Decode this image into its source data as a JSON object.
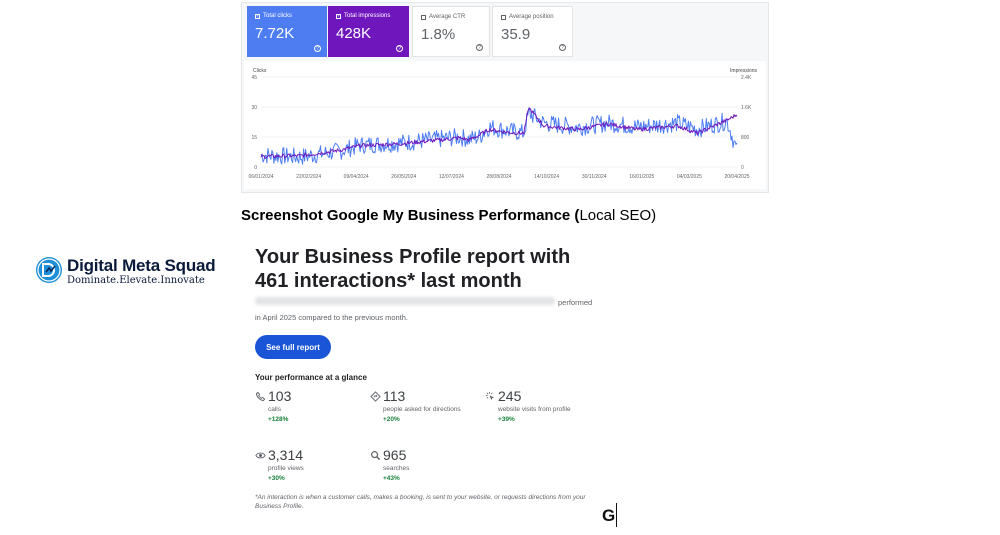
{
  "search_console": {
    "metrics": [
      {
        "label": "Total clicks",
        "value": "7.72K",
        "selected": true
      },
      {
        "label": "Total impressions",
        "value": "428K",
        "selected": true
      },
      {
        "label": "Average CTR",
        "value": "1.8%",
        "selected": false
      },
      {
        "label": "Average position",
        "value": "35.9",
        "selected": false
      }
    ],
    "colors": {
      "clicks": "#4e7df1",
      "impressions": "#6f17bd"
    }
  },
  "chart_data": {
    "type": "line",
    "xlabel": "",
    "y_left_label": "Clicks",
    "y_right_label": "Impressions",
    "y_left_ticks": [
      "0",
      "15",
      "30",
      "45"
    ],
    "y_right_ticks": [
      "0",
      "800",
      "1.6K",
      "2.4K"
    ],
    "y_left_range": [
      0,
      45
    ],
    "y_right_range": [
      0,
      2400
    ],
    "x_ticks": [
      "06/01/2024",
      "22/02/2024",
      "09/04/2024",
      "26/05/2024",
      "12/07/2024",
      "28/08/2024",
      "14/10/2024",
      "30/11/2024",
      "16/01/2025",
      "04/03/2025",
      "20/04/2025"
    ],
    "grid": true,
    "series": [
      {
        "name": "Clicks",
        "axis": "left",
        "color": "#4e7df1",
        "anchors": [
          [
            0,
            6
          ],
          [
            40,
            5
          ],
          [
            80,
            8
          ],
          [
            100,
            11
          ],
          [
            140,
            12
          ],
          [
            180,
            14
          ],
          [
            200,
            15
          ],
          [
            210,
            14
          ],
          [
            220,
            15
          ],
          [
            230,
            20
          ],
          [
            250,
            18
          ],
          [
            265,
            17
          ],
          [
            270,
            27
          ],
          [
            285,
            22
          ],
          [
            300,
            21
          ],
          [
            320,
            20
          ],
          [
            350,
            22
          ],
          [
            380,
            20
          ],
          [
            420,
            22
          ],
          [
            440,
            19
          ],
          [
            470,
            23
          ],
          [
            480,
            8
          ]
        ],
        "amplitude": 4.5
      },
      {
        "name": "Impressions",
        "axis": "right",
        "color": "#6f17bd",
        "anchors": [
          [
            0,
            280
          ],
          [
            40,
            300
          ],
          [
            80,
            450
          ],
          [
            100,
            570
          ],
          [
            140,
            620
          ],
          [
            180,
            720
          ],
          [
            200,
            780
          ],
          [
            210,
            720
          ],
          [
            220,
            850
          ],
          [
            230,
            1000
          ],
          [
            250,
            920
          ],
          [
            265,
            900
          ],
          [
            270,
            1580
          ],
          [
            285,
            1100
          ],
          [
            300,
            1050
          ],
          [
            320,
            1000
          ],
          [
            350,
            1150
          ],
          [
            380,
            1000
          ],
          [
            420,
            1100
          ],
          [
            440,
            900
          ],
          [
            470,
            1250
          ],
          [
            480,
            1400
          ]
        ],
        "amplitude": 90
      }
    ]
  },
  "caption": {
    "bold": "Screenshot Google My Business Performance (",
    "normal": "Local SEO)"
  },
  "logo": {
    "name": "Digital Meta Squad",
    "tagline": "Dominate.Elevate.Innovate"
  },
  "report": {
    "title": "Your Business Profile report with 461 interactions* last month",
    "performed_text": "performed",
    "period_text": "in April 2025 compared to the previous month.",
    "button_label": "See full report",
    "glance_heading": "Your performance at a glance",
    "stats": [
      {
        "icon": "phone-icon",
        "value": "103",
        "label": "calls",
        "change": "+128%"
      },
      {
        "icon": "directions-icon",
        "value": "113",
        "label": "people asked for directions",
        "change": "+20%"
      },
      {
        "icon": "cursor-click-icon",
        "value": "245",
        "label": "website visits from profile",
        "change": "+39%"
      },
      {
        "icon": "eye-icon",
        "value": "3,314",
        "label": "profile views",
        "change": "+30%"
      },
      {
        "icon": "search-icon",
        "value": "965",
        "label": "searches",
        "change": "+43%"
      }
    ],
    "footnote": "*An interaction is when a customer calls, makes a booking, is sent to your website, or requests directions from your Business Profile."
  },
  "stray_glyph": "G"
}
